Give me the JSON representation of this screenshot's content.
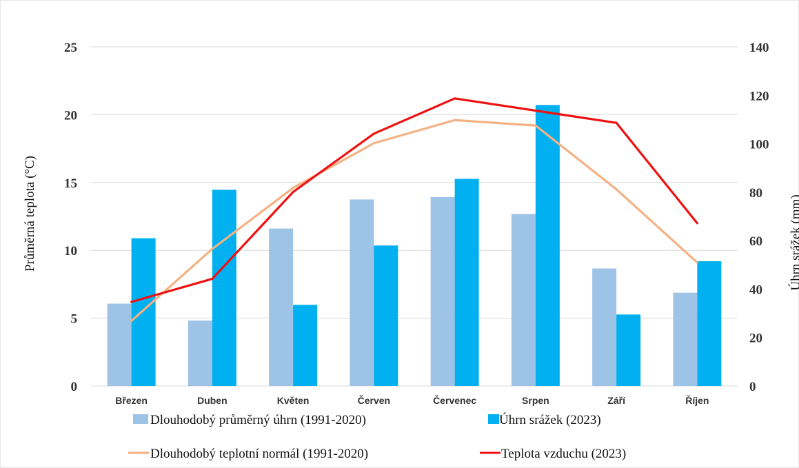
{
  "chart_data": {
    "type": "bar",
    "categories": [
      "Březen",
      "Duben",
      "Květen",
      "Červen",
      "Červenec",
      "Srpen",
      "Září",
      "Říjen"
    ],
    "y_left": {
      "label": "Průměrná teplota (°C)",
      "ticks": [
        "0",
        "5",
        "10",
        "15",
        "20",
        "25"
      ],
      "lim": [
        0,
        25
      ]
    },
    "y_right": {
      "label": "Úhrn srážek (mm)",
      "ticks": [
        "0",
        "20",
        "40",
        "60",
        "80",
        "100",
        "120",
        "140"
      ],
      "lim": [
        0,
        140
      ]
    },
    "grid": true,
    "legend_position": "bottom",
    "series": [
      {
        "name": "Dlouhodobý průměrný úhrn (1991-2020)",
        "type": "bar",
        "axis": "right",
        "color": "#9dc3e6",
        "values": [
          34,
          27,
          65,
          77,
          78,
          71,
          48.5,
          38.5
        ]
      },
      {
        "name": "Úhrn srážek (2023)",
        "type": "bar",
        "axis": "right",
        "color": "#00b0f0",
        "values": [
          61,
          81,
          33.5,
          58,
          85.5,
          116,
          29.5,
          51.5
        ]
      },
      {
        "name": "Dlouhodobý teplotní normál (1991-2020)",
        "type": "line",
        "axis": "left",
        "color": "#f4b183",
        "values": [
          4.8,
          10.1,
          14.6,
          17.9,
          19.6,
          19.2,
          14.5,
          9.1
        ]
      },
      {
        "name": "Teplota vzduchu (2023)",
        "type": "line",
        "axis": "left",
        "color": "#ee1111",
        "values": [
          6.2,
          7.9,
          14.3,
          18.6,
          21.2,
          20.3,
          19.4,
          12.0
        ]
      }
    ]
  }
}
